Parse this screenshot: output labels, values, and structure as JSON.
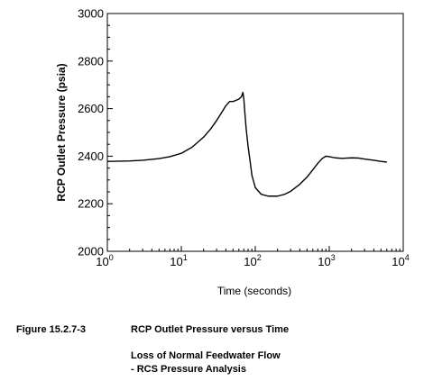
{
  "chart_data": {
    "type": "line",
    "x_scale": "log",
    "xlabel": "Time (seconds)",
    "ylabel": "RCP Outlet Pressure (psia)",
    "xlim": [
      1,
      10000
    ],
    "ylim": [
      2000,
      3000
    ],
    "x_ticks": [
      {
        "value": 1,
        "base": "10",
        "exp": "0"
      },
      {
        "value": 10,
        "base": "10",
        "exp": "1"
      },
      {
        "value": 100,
        "base": "10",
        "exp": "2"
      },
      {
        "value": 1000,
        "base": "10",
        "exp": "3"
      },
      {
        "value": 10000,
        "base": "10",
        "exp": "4"
      }
    ],
    "y_ticks": [
      2000,
      2200,
      2400,
      2600,
      2800,
      3000
    ],
    "grid": false,
    "series": [
      {
        "x": [
          1,
          2,
          3,
          5,
          7,
          10,
          14,
          20,
          25,
          30,
          35,
          40,
          45,
          50,
          55,
          60,
          65,
          68,
          70,
          72,
          75,
          80,
          85,
          90,
          100,
          120,
          150,
          200,
          250,
          300,
          400,
          500,
          600,
          700,
          800,
          900,
          1000,
          1200,
          1500,
          2000,
          2500,
          3000,
          4000,
          5000,
          6000
        ],
        "y": [
          2378,
          2380,
          2383,
          2390,
          2398,
          2412,
          2438,
          2480,
          2515,
          2550,
          2583,
          2612,
          2630,
          2630,
          2635,
          2640,
          2650,
          2668,
          2640,
          2590,
          2520,
          2440,
          2380,
          2320,
          2268,
          2240,
          2232,
          2232,
          2240,
          2252,
          2282,
          2312,
          2343,
          2370,
          2390,
          2400,
          2398,
          2393,
          2391,
          2393,
          2392,
          2388,
          2383,
          2378,
          2375
        ]
      }
    ]
  },
  "caption": {
    "figure_number": "Figure 15.2.7-3",
    "title": "RCP Outlet Pressure versus Time",
    "subtitle_line1": "Loss of Normal Feedwater Flow",
    "subtitle_line2": "- RCS Pressure Analysis"
  }
}
